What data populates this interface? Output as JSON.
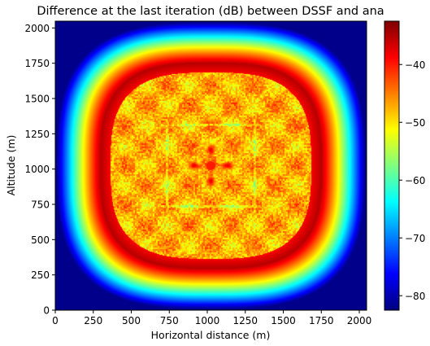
{
  "chart_data": {
    "type": "heatmap",
    "title": "Difference at the last iteration (dB) between DSSF and ana",
    "xlabel": "Horizontal distance (m)",
    "ylabel": "Altitude (m)",
    "xlim": [
      0,
      2048
    ],
    "ylim": [
      0,
      2048
    ],
    "x_ticks": [
      0,
      250,
      500,
      750,
      1000,
      1250,
      1500,
      1750,
      2000
    ],
    "y_ticks": [
      0,
      250,
      500,
      750,
      1000,
      1250,
      1500,
      1750,
      2000
    ],
    "colorbar": {
      "range": [
        -82.5,
        -32.5
      ],
      "ticks": [
        -80,
        -70,
        -60,
        -50,
        -40
      ],
      "colormap": "jet"
    },
    "field": {
      "center": [
        1024,
        1024
      ],
      "background_db": -82,
      "ring_peak_db": -36,
      "ring_radius_m": 700,
      "ring_width_m": 200,
      "corner_power": 3,
      "interior_db_range": [
        -55,
        -40
      ],
      "center_lobes_db": -38
    }
  }
}
